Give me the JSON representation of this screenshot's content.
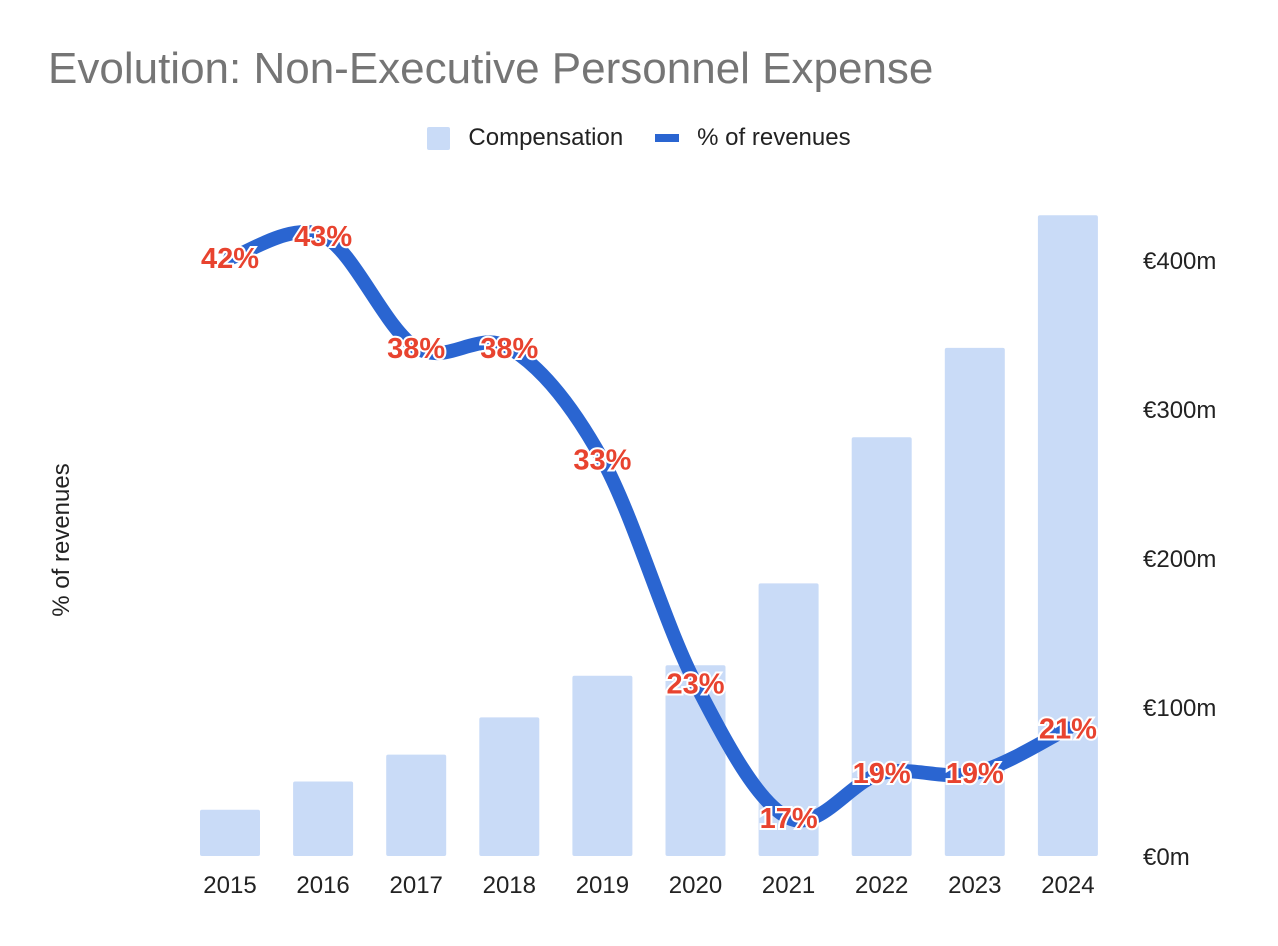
{
  "chart_data": {
    "type": "bar+line",
    "title": "Evolution: Non-Executive Personnel Expense",
    "categories": [
      "2015",
      "2016",
      "2017",
      "2018",
      "2019",
      "2020",
      "2021",
      "2022",
      "2023",
      "2024"
    ],
    "series": [
      {
        "name": "Compensation",
        "type": "bar",
        "axis": "right",
        "color": "#c9dbf7",
        "values": [
          31,
          50,
          68,
          93,
          121,
          128,
          183,
          281,
          341,
          430
        ]
      },
      {
        "name": "% of revenues",
        "type": "line",
        "axis": "left",
        "color": "#2a65d1",
        "values": [
          42,
          43,
          38,
          38,
          33,
          23,
          17,
          19,
          19,
          21
        ],
        "labels": [
          "42%",
          "43%",
          "38%",
          "38%",
          "33%",
          "23%",
          "17%",
          "19%",
          "19%",
          "21%"
        ],
        "label_color": "#e8432f"
      }
    ],
    "ylabel": "% of revenues",
    "y2_ticks": [
      "€0m",
      "€100m",
      "€200m",
      "€300m",
      "€400m"
    ],
    "y2_tick_values": [
      0,
      100,
      200,
      300,
      400
    ],
    "y2lim": [
      0,
      440
    ],
    "ylim": [
      15.3,
      44.6
    ],
    "legend": {
      "placement": "top-center",
      "entries": [
        "Compensation",
        "% of revenues"
      ]
    },
    "grid": false
  }
}
